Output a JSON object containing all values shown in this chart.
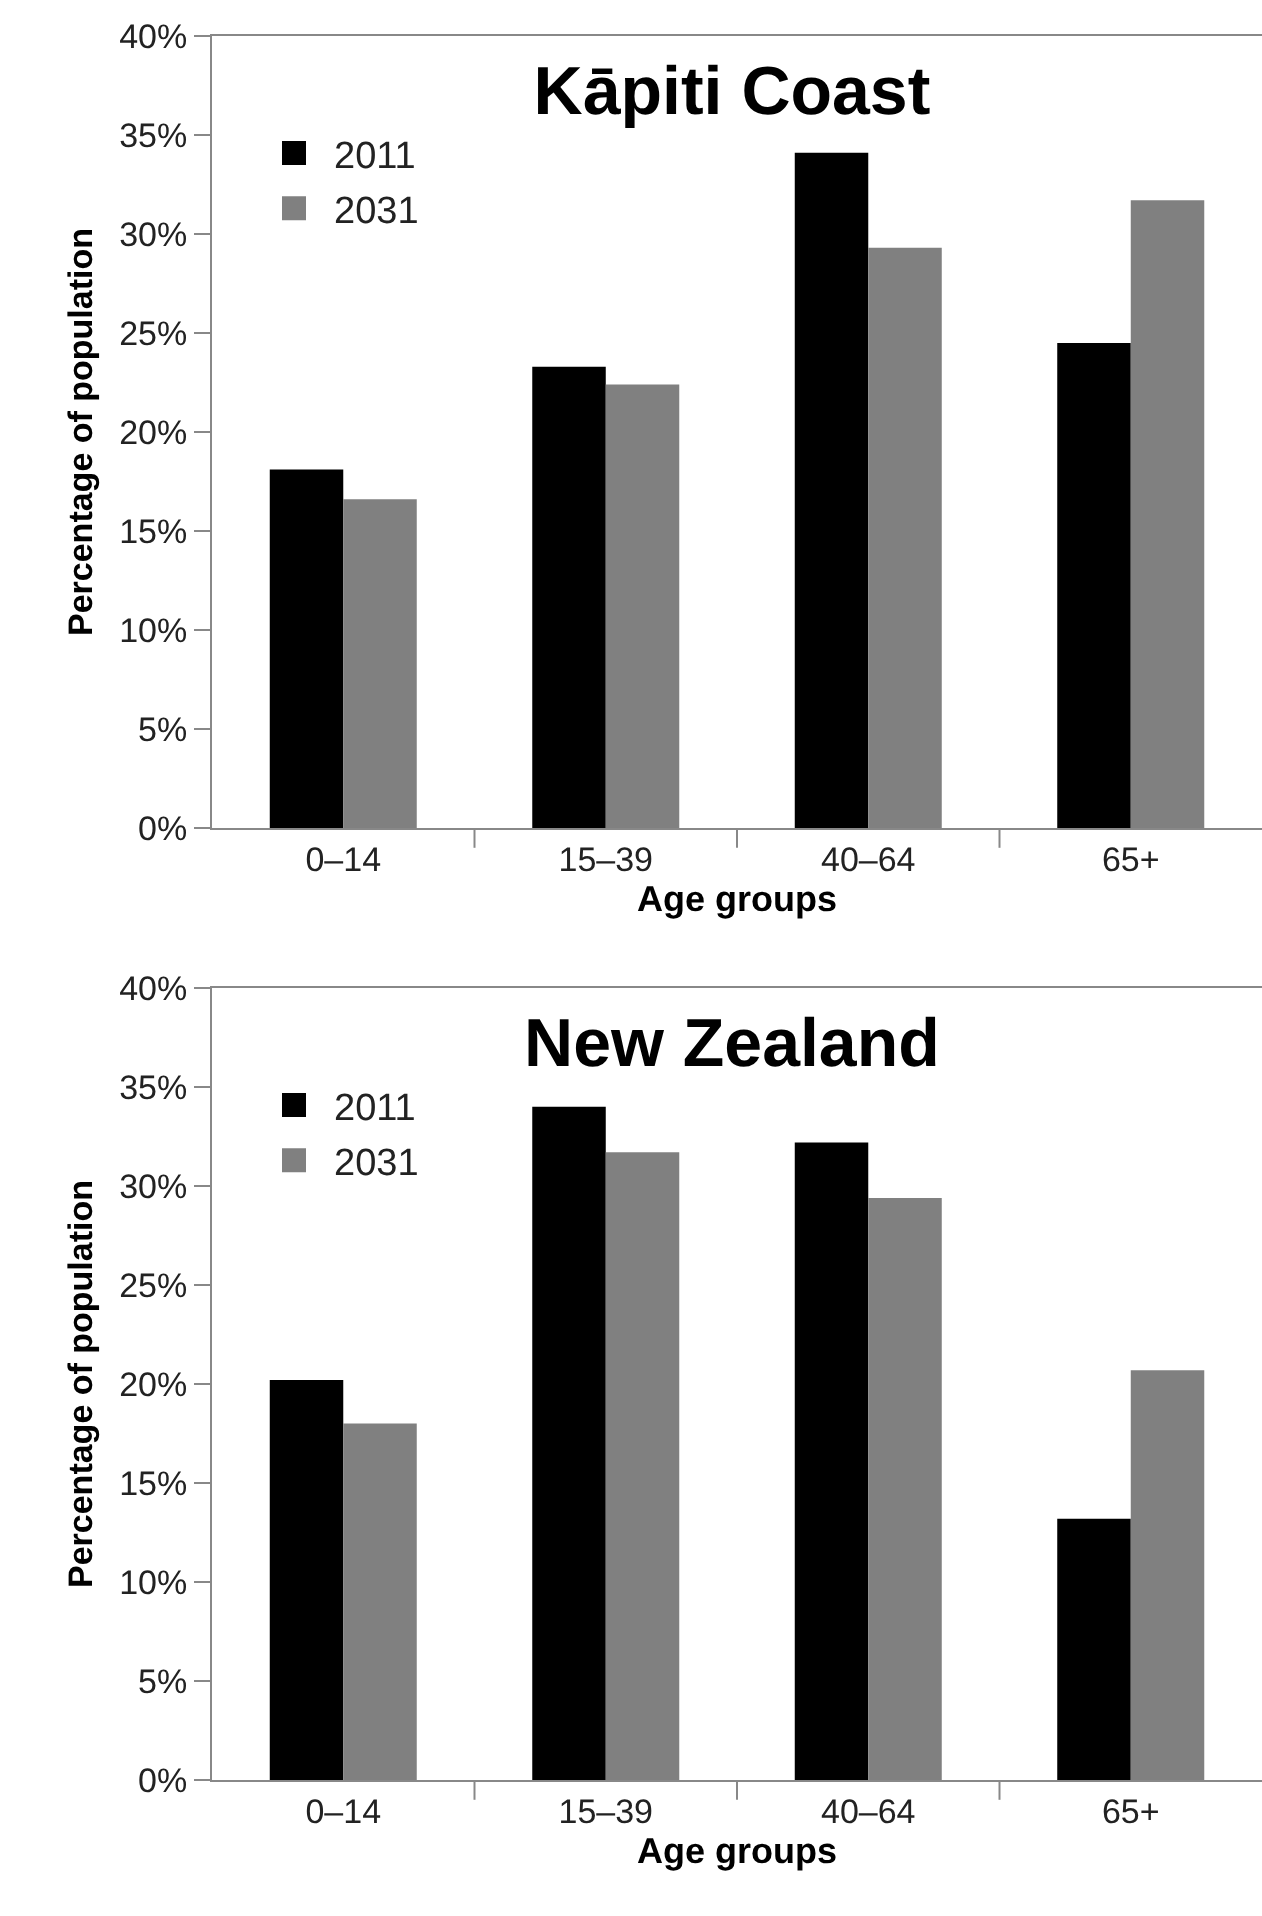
{
  "chart_data": [
    {
      "type": "bar",
      "title": "Kāpiti Coast",
      "xlabel": "Age groups",
      "ylabel": "Percentage of population",
      "categories": [
        "0–14",
        "15–39",
        "40–64",
        "65+"
      ],
      "series": [
        {
          "name": "2011",
          "color": "#000000",
          "values": [
            18.1,
            23.3,
            34.1,
            24.5
          ]
        },
        {
          "name": "2031",
          "color": "#808080",
          "values": [
            16.6,
            22.4,
            29.3,
            31.7
          ]
        }
      ],
      "ylim": [
        0,
        40
      ],
      "yticks": [
        {
          "value": 0,
          "label": "0%"
        },
        {
          "value": 5,
          "label": "5%"
        },
        {
          "value": 10,
          "label": "10%"
        },
        {
          "value": 15,
          "label": "15%"
        },
        {
          "value": 20,
          "label": "20%"
        },
        {
          "value": 25,
          "label": "25%"
        },
        {
          "value": 30,
          "label": "30%"
        },
        {
          "value": 35,
          "label": "35%"
        },
        {
          "value": 40,
          "label": "40%"
        }
      ],
      "grid": false,
      "legend": "top left"
    },
    {
      "type": "bar",
      "title": "New Zealand",
      "xlabel": "Age groups",
      "ylabel": "Percentage of population",
      "categories": [
        "0–14",
        "15–39",
        "40–64",
        "65+"
      ],
      "series": [
        {
          "name": "2011",
          "color": "#000000",
          "values": [
            20.2,
            34.0,
            32.2,
            13.2
          ]
        },
        {
          "name": "2031",
          "color": "#808080",
          "values": [
            18.0,
            31.7,
            29.4,
            20.7
          ]
        }
      ],
      "ylim": [
        0,
        40
      ],
      "yticks": [
        {
          "value": 0,
          "label": "0%"
        },
        {
          "value": 5,
          "label": "5%"
        },
        {
          "value": 10,
          "label": "10%"
        },
        {
          "value": 15,
          "label": "15%"
        },
        {
          "value": 20,
          "label": "20%"
        },
        {
          "value": 25,
          "label": "25%"
        },
        {
          "value": 30,
          "label": "30%"
        },
        {
          "value": 35,
          "label": "35%"
        },
        {
          "value": 40,
          "label": "40%"
        }
      ],
      "grid": false,
      "legend": "top left"
    }
  ]
}
